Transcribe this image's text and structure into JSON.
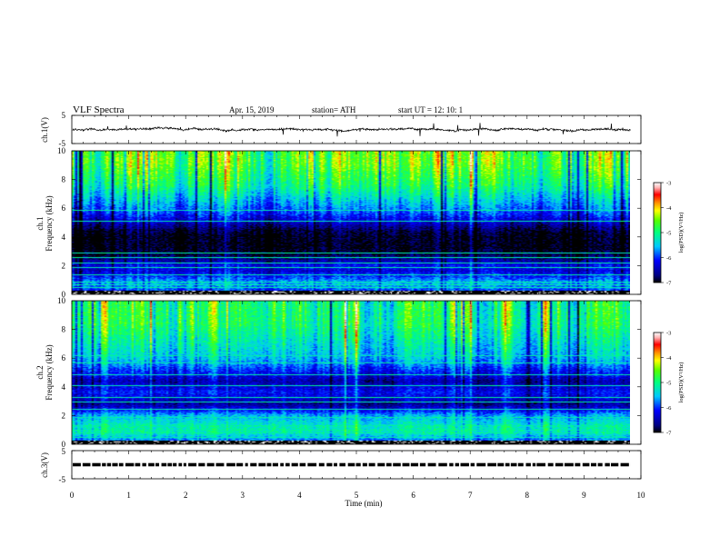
{
  "header": {
    "title": "VLF  Spectra",
    "date": "Apr. 15, 2019",
    "station": "station= ATH",
    "start": "start  UT  =    12: 10: 1"
  },
  "chart_data": [
    {
      "type": "line",
      "name": "ch1-waveform",
      "ylabel": "ch.1(V)",
      "ylim": [
        -5,
        5
      ],
      "yticks": [
        "5",
        "-5"
      ],
      "xlim": [
        0,
        10
      ],
      "signal_end_min": 9.82,
      "approx_level_V": 0
    },
    {
      "type": "heatmap",
      "name": "ch1-spectrogram",
      "ylabel_top": "ch.1",
      "ylabel": "Frequency  (kHz)",
      "ylim": [
        0,
        10
      ],
      "yticks": [
        "0",
        "2",
        "4",
        "6",
        "8",
        "10"
      ],
      "xlim": [
        0,
        10
      ],
      "signal_end_min": 9.82,
      "profile_kHz": [
        0.0,
        0.4,
        0.8,
        1.2,
        1.6,
        2.0,
        2.4,
        2.8,
        3.2,
        3.6,
        4.0,
        4.4,
        4.8,
        5.2,
        5.6,
        6.0,
        6.4,
        6.8,
        7.2,
        7.6,
        8.0,
        8.4,
        8.8,
        9.2,
        9.6,
        10.0
      ],
      "profile_logPSD": [
        -6.3,
        -5.8,
        -5.6,
        -6.0,
        -6.3,
        -6.2,
        -6.6,
        -6.9,
        -7.0,
        -7.0,
        -7.0,
        -6.9,
        -6.6,
        -6.3,
        -6.0,
        -5.8,
        -5.6,
        -5.4,
        -5.2,
        -5.0,
        -4.9,
        -4.8,
        -4.7,
        -4.6,
        -4.6,
        -4.6
      ]
    },
    {
      "type": "heatmap",
      "name": "ch2-spectrogram",
      "ylabel_top": "ch.2",
      "ylabel": "Frequency  (kHz)",
      "ylim": [
        0,
        10
      ],
      "yticks": [
        "0",
        "2",
        "4",
        "6",
        "8",
        "10"
      ],
      "xlim": [
        0,
        10
      ],
      "signal_end_min": 9.82,
      "profile_kHz": [
        0.0,
        0.4,
        0.8,
        1.2,
        1.6,
        2.0,
        2.4,
        2.8,
        3.2,
        3.6,
        4.0,
        4.4,
        4.8,
        5.2,
        5.6,
        6.0,
        6.4,
        6.8,
        7.2,
        7.6,
        8.0,
        8.4,
        8.8,
        9.2,
        9.6,
        10.0
      ],
      "profile_logPSD": [
        -6.0,
        -5.6,
        -5.2,
        -5.2,
        -5.4,
        -5.6,
        -6.2,
        -6.6,
        -6.3,
        -6.1,
        -6.3,
        -6.5,
        -6.2,
        -6.0,
        -5.7,
        -5.5,
        -5.4,
        -5.3,
        -5.2,
        -5.1,
        -5.0,
        -4.9,
        -4.9,
        -4.9,
        -4.9,
        -4.9
      ]
    },
    {
      "type": "line",
      "name": "ch3-waveform",
      "ylabel": "ch.3(V)",
      "ylim": [
        -5,
        5
      ],
      "yticks": [
        "5",
        "-5"
      ],
      "xlim": [
        0,
        10
      ],
      "signal_end_min": 9.82,
      "approx_level_V": 0
    }
  ],
  "xaxis": {
    "label": "Time  (min)",
    "ticks": [
      "0",
      "1",
      "2",
      "3",
      "4",
      "5",
      "6",
      "7",
      "8",
      "9",
      "10"
    ]
  },
  "colorbar": {
    "label": "log(PSD)(V²/Hz)",
    "ticks": [
      "-3",
      "-4",
      "-5",
      "-6",
      "-7"
    ],
    "range": [
      -7,
      -3
    ]
  }
}
